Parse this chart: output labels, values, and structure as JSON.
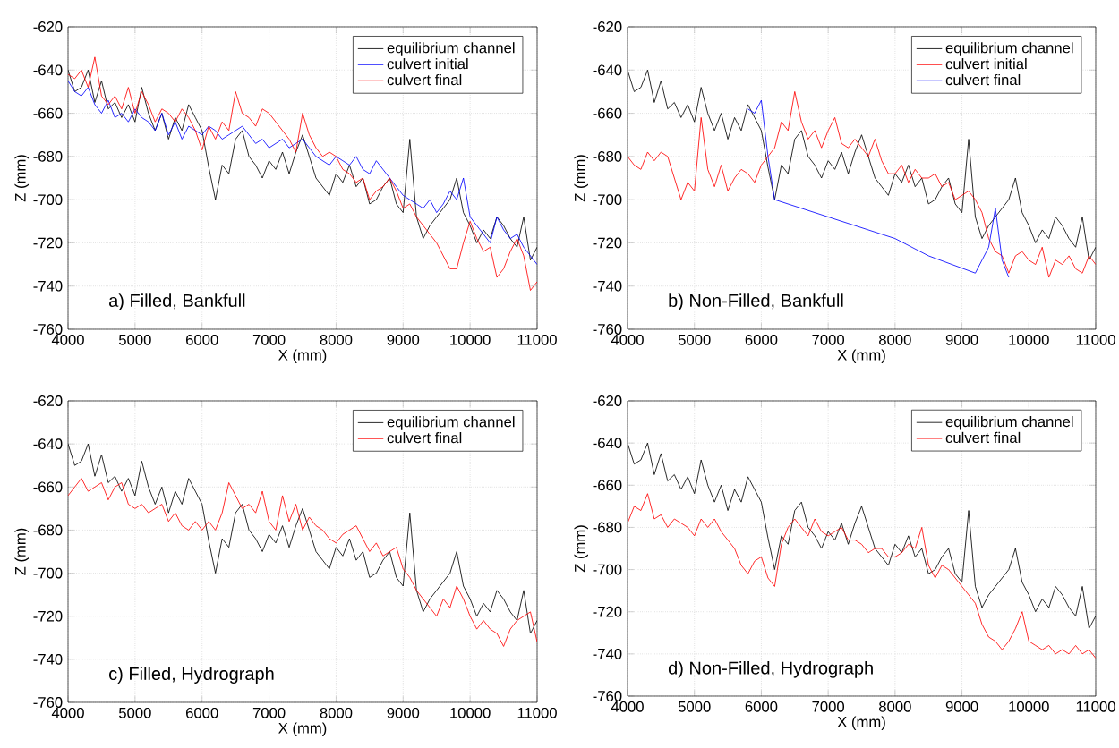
{
  "chart_data": [
    {
      "type": "line",
      "annotations": [
        "a) Filled, Bankfull"
      ],
      "xlabel": "X (mm)",
      "ylabel": "Z (mm)",
      "xlim": [
        4000,
        11000
      ],
      "ylim": [
        -760,
        -620
      ],
      "xticks": [
        4000,
        5000,
        6000,
        7000,
        8000,
        9000,
        10000,
        11000
      ],
      "yticks": [
        -760,
        -740,
        -720,
        -700,
        -680,
        -660,
        -640,
        -620
      ],
      "grid": true,
      "legend": "top right",
      "x": [
        4000,
        4100,
        4200,
        4300,
        4400,
        4500,
        4600,
        4700,
        4800,
        4900,
        5000,
        5100,
        5200,
        5300,
        5400,
        5500,
        5600,
        5700,
        5800,
        5900,
        6000,
        6100,
        6200,
        6300,
        6400,
        6500,
        6600,
        6700,
        6800,
        6900,
        7000,
        7100,
        7200,
        7300,
        7400,
        7500,
        7600,
        7700,
        7800,
        7900,
        8000,
        8100,
        8200,
        8300,
        8400,
        8500,
        8600,
        8700,
        8800,
        8900,
        9000,
        9100,
        9200,
        9300,
        9400,
        9500,
        9600,
        9700,
        9800,
        9900,
        10000,
        10100,
        10200,
        10300,
        10400,
        10500,
        10600,
        10700,
        10800,
        10900,
        11000
      ],
      "series": [
        {
          "name": "equilibrium channel",
          "color": "#000000",
          "values": [
            -640,
            -650,
            -648,
            -640,
            -655,
            -645,
            -658,
            -655,
            -662,
            -656,
            -664,
            -648,
            -660,
            -668,
            -660,
            -672,
            -662,
            -668,
            -656,
            -662,
            -668,
            -685,
            -700,
            -684,
            -688,
            -672,
            -668,
            -680,
            -684,
            -690,
            -682,
            -686,
            -678,
            -688,
            -678,
            -670,
            -680,
            -690,
            -694,
            -698,
            -688,
            -692,
            -684,
            -694,
            -690,
            -702,
            -700,
            -694,
            -690,
            -702,
            -706,
            -672,
            -708,
            -718,
            -712,
            -708,
            -704,
            -700,
            -690,
            -706,
            -712,
            -720,
            -714,
            -718,
            -708,
            -712,
            -718,
            -722,
            -708,
            -728,
            -722
          ]
        },
        {
          "name": "culvert initial",
          "color": "#0000ff",
          "values": [
            -645,
            -650,
            -652,
            -648,
            -656,
            -660,
            -654,
            -662,
            -660,
            -664,
            -658,
            -662,
            -664,
            -668,
            -660,
            -670,
            -664,
            -672,
            -666,
            -668,
            -670,
            -666,
            -668,
            -672,
            -670,
            -668,
            -666,
            -670,
            -674,
            -672,
            -676,
            -674,
            -672,
            -676,
            -674,
            -672,
            -676,
            -680,
            -682,
            -684,
            -680,
            -682,
            -684,
            -680,
            -686,
            -688,
            -682,
            -686,
            -690,
            -694,
            -698,
            -700,
            -702,
            -704,
            -700,
            -706,
            -702,
            -696,
            -700,
            -690,
            -708,
            -712,
            -716,
            -720,
            -708,
            -714,
            -718,
            -716,
            -722,
            -726,
            -730
          ]
        },
        {
          "name": "culvert final",
          "color": "#ff0000",
          "values": [
            -642,
            -644,
            -640,
            -648,
            -634,
            -652,
            -656,
            -652,
            -658,
            -648,
            -660,
            -650,
            -656,
            -664,
            -658,
            -660,
            -664,
            -658,
            -662,
            -668,
            -677,
            -666,
            -672,
            -664,
            -668,
            -650,
            -660,
            -662,
            -666,
            -658,
            -660,
            -664,
            -668,
            -672,
            -678,
            -660,
            -670,
            -676,
            -680,
            -678,
            -680,
            -686,
            -688,
            -692,
            -690,
            -700,
            -696,
            -694,
            -690,
            -696,
            -704,
            -702,
            -708,
            -712,
            -716,
            -720,
            -726,
            -732,
            -732,
            -720,
            -710,
            -718,
            -724,
            -722,
            -736,
            -732,
            -724,
            -718,
            -726,
            -742,
            -738
          ]
        }
      ]
    },
    {
      "type": "line",
      "annotations": [
        "b) Non-Filled, Bankfull"
      ],
      "xlabel": "X (mm)",
      "ylabel": "Z (mm)",
      "xlim": [
        4000,
        11000
      ],
      "ylim": [
        -760,
        -620
      ],
      "xticks": [
        4000,
        5000,
        6000,
        7000,
        8000,
        9000,
        10000,
        11000
      ],
      "yticks": [
        -760,
        -740,
        -720,
        -700,
        -680,
        -660,
        -640,
        -620
      ],
      "grid": true,
      "legend": "top right",
      "x": [
        4000,
        4100,
        4200,
        4300,
        4400,
        4500,
        4600,
        4700,
        4800,
        4900,
        5000,
        5100,
        5200,
        5300,
        5400,
        5500,
        5600,
        5700,
        5800,
        5900,
        6000,
        6100,
        6200,
        6300,
        6400,
        6500,
        6600,
        6700,
        6800,
        6900,
        7000,
        7100,
        7200,
        7300,
        7400,
        7500,
        7600,
        7700,
        7800,
        7900,
        8000,
        8100,
        8200,
        8300,
        8400,
        8500,
        8600,
        8700,
        8800,
        8900,
        9000,
        9100,
        9200,
        9300,
        9400,
        9500,
        9600,
        9700,
        9800,
        9900,
        10000,
        10100,
        10200,
        10300,
        10400,
        10500,
        10600,
        10700,
        10800,
        10900,
        11000
      ],
      "series": [
        {
          "name": "equilibrium channel",
          "color": "#000000",
          "values": [
            -640,
            -650,
            -648,
            -640,
            -655,
            -645,
            -658,
            -655,
            -662,
            -656,
            -664,
            -648,
            -660,
            -668,
            -660,
            -672,
            -662,
            -668,
            -656,
            -662,
            -668,
            -685,
            -700,
            -684,
            -688,
            -672,
            -668,
            -680,
            -684,
            -690,
            -682,
            -686,
            -678,
            -688,
            -678,
            -670,
            -680,
            -690,
            -694,
            -698,
            -688,
            -692,
            -684,
            -694,
            -690,
            -702,
            -700,
            -694,
            -690,
            -702,
            -706,
            -672,
            -708,
            -718,
            -712,
            -708,
            -704,
            -700,
            -690,
            -706,
            -712,
            -720,
            -714,
            -718,
            -708,
            -712,
            -718,
            -722,
            -708,
            -728,
            -722
          ]
        },
        {
          "name": "culvert initial",
          "color": "#ff0000",
          "values": [
            -680,
            -684,
            -686,
            -678,
            -682,
            -678,
            -680,
            -690,
            -700,
            -692,
            -696,
            -662,
            -686,
            -694,
            -684,
            -696,
            -690,
            -686,
            -688,
            -692,
            -684,
            -680,
            -676,
            -664,
            -668,
            -650,
            -664,
            -672,
            -668,
            -676,
            -668,
            -662,
            -674,
            -676,
            -672,
            -676,
            -680,
            -672,
            -682,
            -688,
            -688,
            -684,
            -692,
            -686,
            -690,
            -690,
            -688,
            -694,
            -692,
            -700,
            -698,
            -696,
            -700,
            -706,
            -718,
            -724,
            -726,
            -734,
            -726,
            -724,
            -728,
            -730,
            -722,
            -736,
            -728,
            -730,
            -726,
            -732,
            -734,
            -726,
            -730
          ]
        },
        {
          "name": "culvert final",
          "color": "#0000ff",
          "x": [
            5800,
            5900,
            6000,
            6100,
            6200,
            7000,
            8000,
            8500,
            9200,
            9300,
            9400,
            9500,
            9600,
            9700
          ],
          "values": [
            -658,
            -660,
            -654,
            -680,
            -700,
            -708,
            -718,
            -726,
            -734,
            -728,
            -722,
            -704,
            -728,
            -736
          ]
        }
      ]
    },
    {
      "type": "line",
      "annotations": [
        "c) Filled, Hydrograph"
      ],
      "xlabel": "X (mm)",
      "ylabel": "Z (mm)",
      "xlim": [
        4000,
        11000
      ],
      "ylim": [
        -760,
        -620
      ],
      "xticks": [
        4000,
        5000,
        6000,
        7000,
        8000,
        9000,
        10000,
        11000
      ],
      "yticks": [
        -760,
        -740,
        -720,
        -700,
        -680,
        -660,
        -640,
        -620
      ],
      "grid": true,
      "legend": "top right",
      "x": [
        4000,
        4100,
        4200,
        4300,
        4400,
        4500,
        4600,
        4700,
        4800,
        4900,
        5000,
        5100,
        5200,
        5300,
        5400,
        5500,
        5600,
        5700,
        5800,
        5900,
        6000,
        6100,
        6200,
        6300,
        6400,
        6500,
        6600,
        6700,
        6800,
        6900,
        7000,
        7100,
        7200,
        7300,
        7400,
        7500,
        7600,
        7700,
        7800,
        7900,
        8000,
        8100,
        8200,
        8300,
        8400,
        8500,
        8600,
        8700,
        8800,
        8900,
        9000,
        9100,
        9200,
        9300,
        9400,
        9500,
        9600,
        9700,
        9800,
        9900,
        10000,
        10100,
        10200,
        10300,
        10400,
        10500,
        10600,
        10700,
        10800,
        10900,
        11000
      ],
      "series": [
        {
          "name": "equilibrium channel",
          "color": "#000000",
          "values": [
            -640,
            -650,
            -648,
            -640,
            -655,
            -645,
            -658,
            -655,
            -662,
            -656,
            -664,
            -648,
            -660,
            -668,
            -660,
            -672,
            -662,
            -668,
            -656,
            -662,
            -668,
            -685,
            -700,
            -684,
            -688,
            -672,
            -668,
            -680,
            -684,
            -690,
            -682,
            -686,
            -678,
            -688,
            -678,
            -670,
            -680,
            -690,
            -694,
            -698,
            -688,
            -692,
            -684,
            -694,
            -690,
            -702,
            -700,
            -694,
            -690,
            -702,
            -706,
            -672,
            -708,
            -718,
            -712,
            -708,
            -704,
            -700,
            -690,
            -706,
            -712,
            -720,
            -714,
            -718,
            -708,
            -712,
            -718,
            -722,
            -708,
            -728,
            -722
          ]
        },
        {
          "name": "culvert final",
          "color": "#ff0000",
          "values": [
            -664,
            -660,
            -656,
            -662,
            -660,
            -658,
            -666,
            -660,
            -658,
            -668,
            -670,
            -668,
            -672,
            -670,
            -668,
            -676,
            -672,
            -678,
            -680,
            -676,
            -680,
            -676,
            -680,
            -672,
            -658,
            -664,
            -670,
            -668,
            -672,
            -662,
            -676,
            -680,
            -664,
            -676,
            -668,
            -680,
            -674,
            -678,
            -680,
            -684,
            -686,
            -682,
            -680,
            -678,
            -684,
            -690,
            -686,
            -692,
            -690,
            -688,
            -698,
            -702,
            -708,
            -712,
            -716,
            -720,
            -712,
            -716,
            -706,
            -712,
            -720,
            -726,
            -722,
            -726,
            -728,
            -734,
            -726,
            -722,
            -720,
            -718,
            -732
          ]
        }
      ]
    },
    {
      "type": "line",
      "annotations": [
        "d) Non-Filled, Hydrograph"
      ],
      "xlabel": "X (mm)",
      "ylabel": "Z (mm)",
      "xlim": [
        4000,
        11000
      ],
      "ylim": [
        -760,
        -620
      ],
      "xticks": [
        4000,
        5000,
        6000,
        7000,
        8000,
        9000,
        10000,
        11000
      ],
      "yticks": [
        -760,
        -740,
        -720,
        -700,
        -680,
        -660,
        -640,
        -620
      ],
      "grid": true,
      "legend": "top right",
      "x": [
        4000,
        4100,
        4200,
        4300,
        4400,
        4500,
        4600,
        4700,
        4800,
        4900,
        5000,
        5100,
        5200,
        5300,
        5400,
        5500,
        5600,
        5700,
        5800,
        5900,
        6000,
        6100,
        6200,
        6300,
        6400,
        6500,
        6600,
        6700,
        6800,
        6900,
        7000,
        7100,
        7200,
        7300,
        7400,
        7500,
        7600,
        7700,
        7800,
        7900,
        8000,
        8100,
        8200,
        8300,
        8400,
        8500,
        8600,
        8700,
        8800,
        8900,
        9000,
        9100,
        9200,
        9300,
        9400,
        9500,
        9600,
        9700,
        9800,
        9900,
        10000,
        10100,
        10200,
        10300,
        10400,
        10500,
        10600,
        10700,
        10800,
        10900,
        11000
      ],
      "series": [
        {
          "name": "equilibrium channel",
          "color": "#000000",
          "values": [
            -640,
            -650,
            -648,
            -640,
            -655,
            -645,
            -658,
            -655,
            -662,
            -656,
            -664,
            -648,
            -660,
            -668,
            -660,
            -672,
            -662,
            -668,
            -656,
            -662,
            -668,
            -685,
            -700,
            -684,
            -688,
            -672,
            -668,
            -680,
            -684,
            -690,
            -682,
            -686,
            -678,
            -688,
            -678,
            -670,
            -680,
            -690,
            -694,
            -698,
            -688,
            -692,
            -684,
            -694,
            -690,
            -702,
            -700,
            -694,
            -690,
            -702,
            -706,
            -672,
            -708,
            -718,
            -712,
            -708,
            -704,
            -700,
            -690,
            -706,
            -712,
            -720,
            -714,
            -718,
            -708,
            -712,
            -718,
            -722,
            -708,
            -728,
            -722
          ]
        },
        {
          "name": "culvert final",
          "color": "#ff0000",
          "values": [
            -678,
            -670,
            -672,
            -664,
            -676,
            -674,
            -680,
            -676,
            -678,
            -680,
            -684,
            -676,
            -680,
            -676,
            -682,
            -686,
            -690,
            -698,
            -702,
            -696,
            -694,
            -704,
            -708,
            -688,
            -680,
            -676,
            -680,
            -684,
            -676,
            -682,
            -684,
            -682,
            -680,
            -686,
            -686,
            -688,
            -692,
            -690,
            -690,
            -694,
            -694,
            -692,
            -688,
            -690,
            -680,
            -698,
            -704,
            -698,
            -700,
            -704,
            -708,
            -712,
            -716,
            -726,
            -732,
            -734,
            -738,
            -734,
            -728,
            -720,
            -734,
            -736,
            -738,
            -736,
            -740,
            -738,
            -740,
            -736,
            -740,
            -738,
            -742
          ]
        }
      ]
    }
  ]
}
